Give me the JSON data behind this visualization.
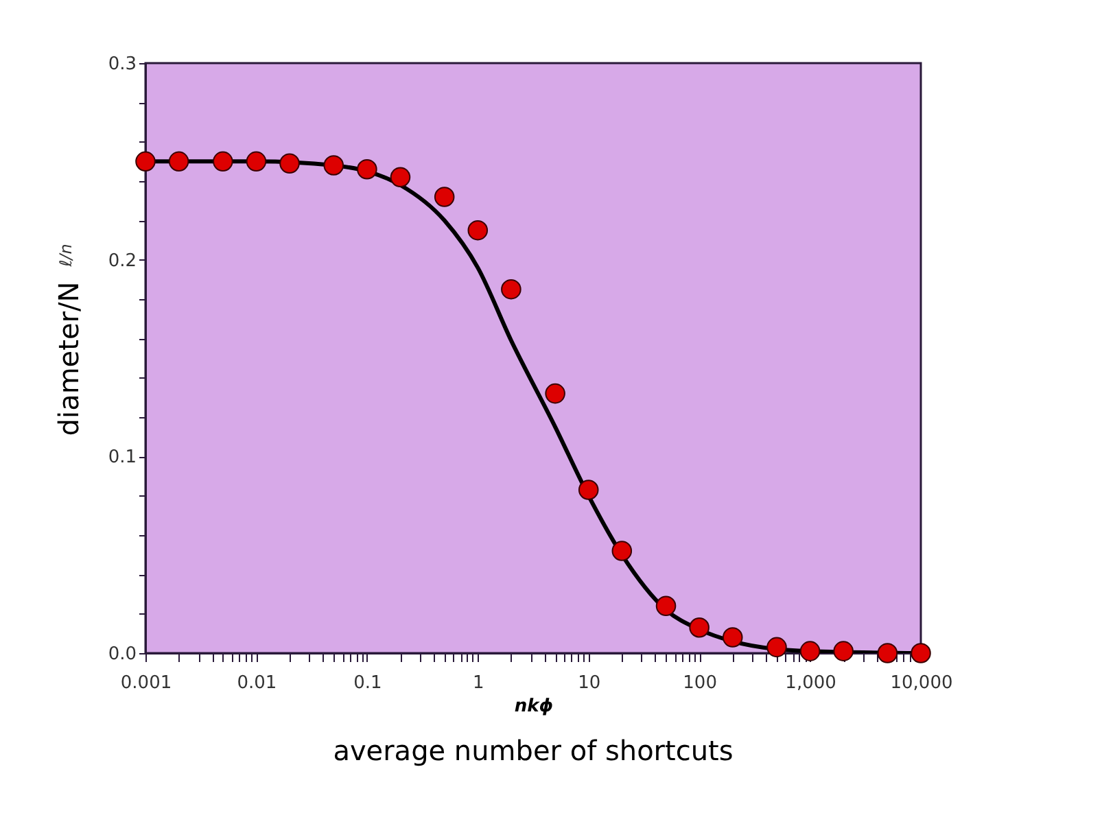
{
  "chart_data": {
    "type": "scatter",
    "xlabel": "nkϕ",
    "ylabel": "diameter/N",
    "annotations": [
      "ℓ/n",
      "average number of shortcuts"
    ],
    "log": "x",
    "grid": false,
    "xlim": [
      0.001,
      10000
    ],
    "ylim": [
      0,
      0.3
    ],
    "xticks": [
      {
        "value": 0.001,
        "label": "0.001"
      },
      {
        "value": 0.01,
        "label": "0.01"
      },
      {
        "value": 0.1,
        "label": "0.1"
      },
      1,
      10,
      100,
      {
        "value": 1000,
        "label": "1,000"
      },
      {
        "value": 10000,
        "label": "10,000"
      },
      {
        "value": 0.002,
        "label": null
      },
      {
        "value": 0.003,
        "label": null
      },
      {
        "value": 0.004,
        "label": null
      },
      {
        "value": 0.005,
        "label": null
      },
      {
        "value": 0.006,
        "label": null
      },
      {
        "value": 0.007,
        "label": null
      },
      {
        "value": 0.008,
        "label": null
      },
      {
        "value": 0.009,
        "label": null
      },
      {
        "value": 0.02,
        "label": null
      },
      {
        "value": 0.03,
        "label": null
      },
      {
        "value": 0.04,
        "label": null
      },
      {
        "value": 0.05,
        "label": null
      },
      {
        "value": 0.06,
        "label": null
      },
      {
        "value": 0.07,
        "label": null
      },
      {
        "value": 0.08,
        "label": null
      },
      {
        "value": 0.09,
        "label": null
      },
      {
        "value": 0.2,
        "label": null
      },
      {
        "value": 0.3,
        "label": null
      },
      {
        "value": 0.4,
        "label": null
      },
      {
        "value": 0.5,
        "label": null
      },
      {
        "value": 0.6,
        "label": null
      },
      {
        "value": 0.7,
        "label": null
      },
      {
        "value": 0.8,
        "label": null
      },
      {
        "value": 0.9,
        "label": null
      },
      {
        "value": 2,
        "label": null
      },
      {
        "value": 3,
        "label": null
      },
      {
        "value": 4,
        "label": null
      },
      {
        "value": 5,
        "label": null
      },
      {
        "value": 6,
        "label": null
      },
      {
        "value": 7,
        "label": null
      },
      {
        "value": 8,
        "label": null
      },
      {
        "value": 9,
        "label": null
      },
      {
        "value": 20,
        "label": null
      },
      {
        "value": 30,
        "label": null
      },
      {
        "value": 40,
        "label": null
      },
      {
        "value": 50,
        "label": null
      },
      {
        "value": 60,
        "label": null
      },
      {
        "value": 70,
        "label": null
      },
      {
        "value": 80,
        "label": null
      },
      {
        "value": 90,
        "label": null
      },
      {
        "value": 200,
        "label": null
      },
      {
        "value": 300,
        "label": null
      },
      {
        "value": 400,
        "label": null
      },
      {
        "value": 500,
        "label": null
      },
      {
        "value": 600,
        "label": null
      },
      {
        "value": 700,
        "label": null
      },
      {
        "value": 800,
        "label": null
      },
      {
        "value": 900,
        "label": null
      },
      {
        "value": 2000,
        "label": null
      },
      {
        "value": 3000,
        "label": null
      },
      {
        "value": 4000,
        "label": null
      },
      {
        "value": 5000,
        "label": null
      },
      {
        "value": 6000,
        "label": null
      },
      {
        "value": 7000,
        "label": null
      },
      {
        "value": 8000,
        "label": null
      },
      {
        "value": 9000,
        "label": null
      }
    ],
    "yticks": [
      {
        "value": 0,
        "label": "0.0"
      },
      0.1,
      0.2,
      0.3,
      {
        "value": 0.02,
        "label": null
      },
      {
        "value": 0.04,
        "label": null
      },
      {
        "value": 0.06,
        "label": null
      },
      {
        "value": 0.08,
        "label": null
      },
      {
        "value": 0.12,
        "label": null
      },
      {
        "value": 0.14,
        "label": null
      },
      {
        "value": 0.16,
        "label": null
      },
      {
        "value": 0.18,
        "label": null
      },
      {
        "value": 0.22,
        "label": null
      },
      {
        "value": 0.24,
        "label": null
      },
      {
        "value": 0.26,
        "label": null
      },
      {
        "value": 0.28,
        "label": null
      }
    ],
    "series": [
      {
        "type": "line",
        "color": "#000000",
        "line_style": "solid",
        "marker": "none",
        "x": [
          0.001,
          0.01,
          0.05,
          0.1,
          0.2,
          0.5,
          1,
          2,
          5,
          10,
          20,
          50,
          100,
          200,
          500,
          1000,
          10000
        ],
        "values": [
          0.25,
          0.25,
          0.248,
          0.245,
          0.238,
          0.22,
          0.196,
          0.159,
          0.115,
          0.08,
          0.05,
          0.022,
          0.012,
          0.006,
          0.002,
          0.001,
          0.0
        ]
      },
      {
        "color": "#dd0000",
        "marker": "circle",
        "x": [
          0.001,
          0.002,
          0.005,
          0.01,
          0.02,
          0.05,
          0.1,
          0.2,
          0.5,
          1,
          2,
          5,
          10,
          20,
          50,
          100,
          200,
          500,
          1000,
          2000,
          5000,
          10000
        ],
        "values": [
          0.25,
          0.25,
          0.25,
          0.25,
          0.249,
          0.248,
          0.246,
          0.242,
          0.232,
          0.215,
          0.185,
          0.132,
          0.083,
          0.052,
          0.024,
          0.013,
          0.008,
          0.003,
          0.001,
          0.001,
          0.0,
          0.0
        ]
      }
    ]
  }
}
